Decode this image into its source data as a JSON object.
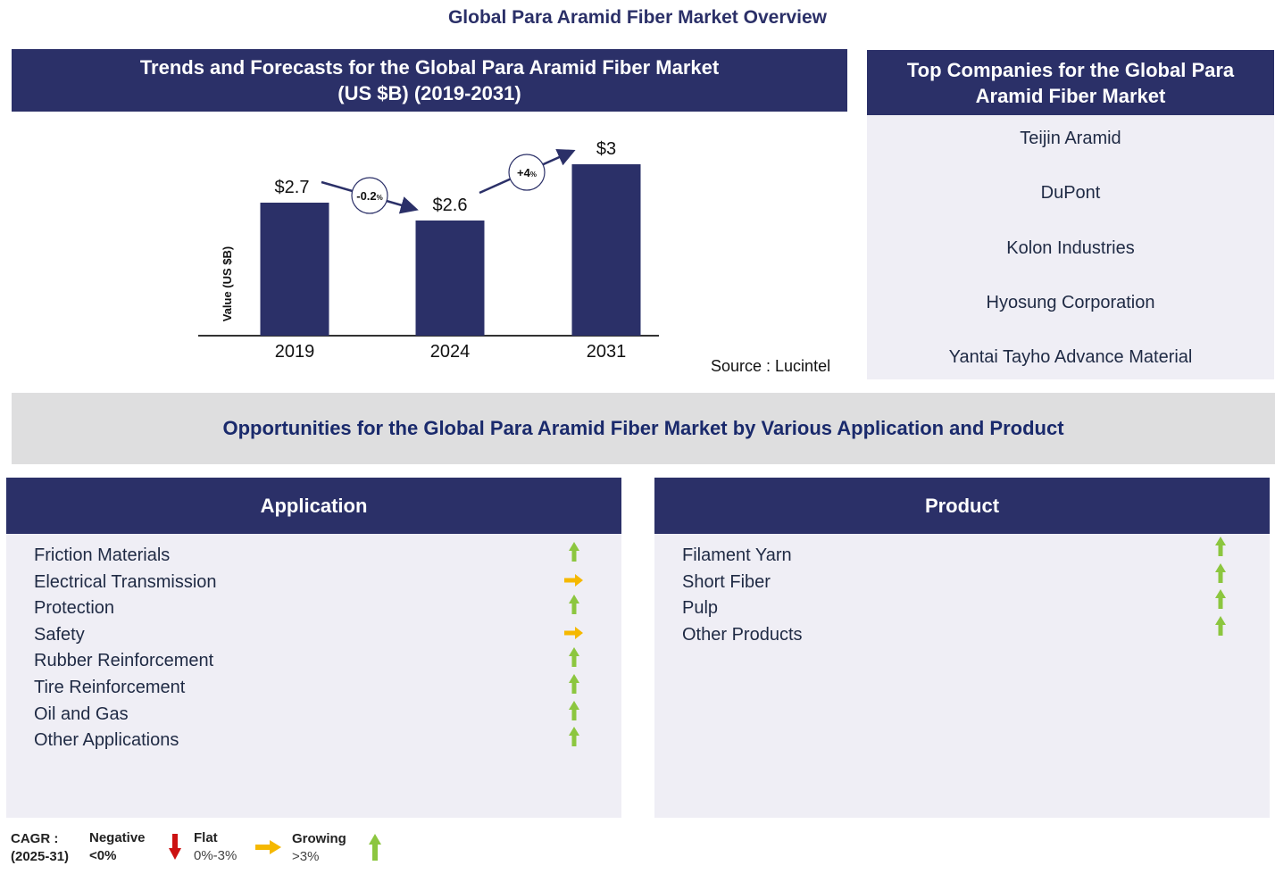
{
  "page_title": "Global Para Aramid Fiber Market Overview",
  "chart_section": {
    "header_line1": "Trends and Forecasts for the Global Para Aramid Fiber Market",
    "header_line2": "(US $B) (2019-2031)",
    "source": "Source : Lucintel"
  },
  "chart_data": {
    "type": "bar",
    "categories": [
      "2019",
      "2024",
      "2031"
    ],
    "values": [
      2.7,
      2.6,
      3.0
    ],
    "value_labels": [
      "$2.7",
      "$2.6",
      "$3"
    ],
    "ylabel": "Value (US $B)",
    "ylim": [
      0,
      3.2
    ],
    "bar_color": "#2b3068",
    "cagr_annotations": [
      {
        "from": "2019",
        "to": "2024",
        "label": "-0.2",
        "unit": "%"
      },
      {
        "from": "2024",
        "to": "2031",
        "label": "+4",
        "unit": "%"
      }
    ]
  },
  "companies": {
    "header_line1": "Top Companies for the Global Para",
    "header_line2": "Aramid Fiber Market",
    "items": [
      "Teijin Aramid",
      "DuPont",
      "Kolon Industries",
      "Hyosung Corporation",
      "Yantai Tayho Advance Material"
    ]
  },
  "opportunities_title": "Opportunities for the Global Para Aramid Fiber Market by Various Application and Product",
  "application": {
    "header": "Application",
    "items": [
      {
        "label": "Friction Materials",
        "trend": "growing"
      },
      {
        "label": "Electrical Transmission",
        "trend": "flat"
      },
      {
        "label": "Protection",
        "trend": "growing"
      },
      {
        "label": "Safety",
        "trend": "flat"
      },
      {
        "label": "Rubber Reinforcement",
        "trend": "growing"
      },
      {
        "label": "Tire Reinforcement",
        "trend": "growing"
      },
      {
        "label": "Oil and Gas",
        "trend": "growing"
      },
      {
        "label": "Other Applications",
        "trend": "growing"
      }
    ]
  },
  "product": {
    "header": "Product",
    "items": [
      {
        "label": "Filament Yarn",
        "trend": "growing"
      },
      {
        "label": "Short Fiber",
        "trend": "growing"
      },
      {
        "label": "Pulp",
        "trend": "growing"
      },
      {
        "label": "Other Products",
        "trend": "growing"
      }
    ]
  },
  "legend": {
    "cagr_label": "CAGR :",
    "cagr_period": "(2025-31)",
    "negative_label": "Negative",
    "negative_range": "<0%",
    "flat_label": "Flat",
    "flat_range": "0%-3%",
    "growing_label": "Growing",
    "growing_range": ">3%"
  },
  "colors": {
    "navy": "#2b3068",
    "growing": "#8cc63f",
    "flat": "#f5b800",
    "negative": "#cc1111"
  }
}
